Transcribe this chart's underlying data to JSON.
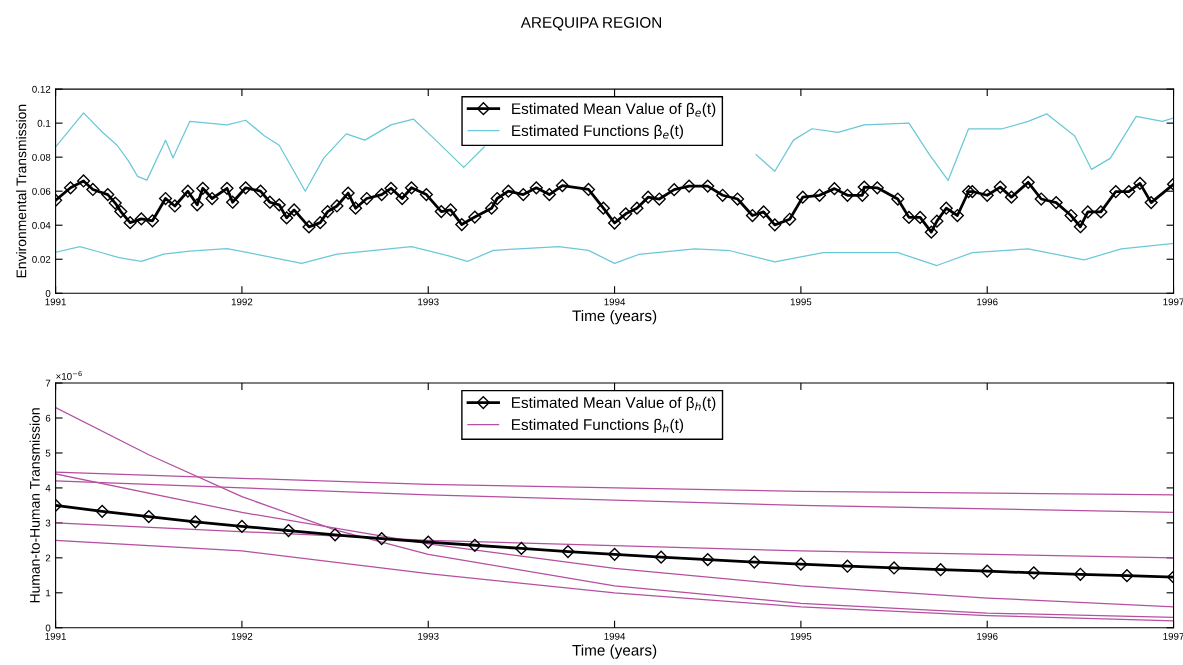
{
  "chart_data": [
    {
      "type": "line",
      "title": "AREQUIPA REGION",
      "xlabel": "Time (years)",
      "ylabel": "Environmental Transmission",
      "xlim": [
        1991,
        1997
      ],
      "xticks": [
        1991,
        1992,
        1993,
        1994,
        1995,
        1996,
        1997
      ],
      "ylim": [
        0,
        0.12
      ],
      "yticks": [
        0,
        0.02,
        0.04,
        0.06,
        0.08,
        0.1,
        0.12
      ],
      "legend": "top",
      "grid": false,
      "series": [
        {
          "name": "Estimated Functions β$_{e}$(t)",
          "color": "#6ac8d9",
          "marker": "none",
          "x": [
            1991.0,
            1991.05,
            1991.15,
            1991.25,
            1991.33,
            1991.39,
            1991.44,
            1991.49,
            1991.59,
            1991.63,
            1991.72,
            1991.92,
            1992.02,
            1992.12,
            1992.2,
            1992.34,
            1992.44,
            1992.56,
            1992.66,
            1992.8,
            1992.92,
            1993.04,
            1993.19,
            1993.3,
            1994.0,
            1994.76,
            1994.86,
            1994.96,
            1995.06,
            1995.2,
            1995.34,
            1995.58,
            1995.69,
            1995.79,
            1995.9,
            1996.08,
            1996.22,
            1996.32,
            1996.47,
            1996.56,
            1996.66,
            1996.8,
            1996.94,
            1997.0
          ],
          "values": [
            0.086,
            0.0926,
            0.106,
            0.0948,
            0.087,
            0.078,
            0.0687,
            0.0665,
            0.09,
            0.0796,
            0.101,
            0.099,
            0.1017,
            0.0926,
            0.087,
            0.06,
            0.0796,
            0.0937,
            0.09,
            0.099,
            0.1024,
            0.09,
            0.074,
            0.086,
            null,
            0.0815,
            0.0717,
            0.09,
            0.0967,
            0.0946,
            0.099,
            0.1,
            0.0815,
            0.0663,
            0.0967,
            0.0967,
            0.101,
            0.1054,
            0.0924,
            0.0728,
            0.0793,
            0.104,
            0.101,
            0.103
          ]
        },
        {
          "color": "#6ac8d9",
          "marker": "none",
          "x": [
            1991.0,
            1991.13,
            1991.24,
            1991.34,
            1991.46,
            1991.58,
            1991.72,
            1991.92,
            1992.12,
            1992.32,
            1992.51,
            1992.71,
            1992.91,
            1993.11,
            1993.21,
            1993.35,
            1993.51,
            1993.7,
            1993.86,
            1994.0,
            1994.13,
            1994.43,
            1994.62,
            1994.86,
            1995.12,
            1995.52,
            1995.73,
            1995.92,
            1996.22,
            1996.52,
            1996.72,
            1997.0
          ],
          "values": [
            0.0241,
            0.0274,
            0.0241,
            0.0209,
            0.0187,
            0.023,
            0.0248,
            0.0263,
            0.022,
            0.0176,
            0.023,
            0.0252,
            0.0274,
            0.022,
            0.0187,
            0.0252,
            0.0263,
            0.0274,
            0.0252,
            0.0176,
            0.0228,
            0.0261,
            0.025,
            0.0185,
            0.0239,
            0.0239,
            0.0163,
            0.0239,
            0.0261,
            0.0196,
            0.0261,
            0.0293
          ]
        },
        {
          "color": "#000000",
          "marker": "diamond",
          "x": [
            1991.0,
            1991.08,
            1991.15,
            1991.2,
            1991.28,
            1991.32,
            1991.35,
            1991.4,
            1991.46,
            1991.52,
            1991.59,
            1991.64,
            1991.71,
            1991.76,
            1991.79,
            1991.84,
            1991.92,
            1991.95,
            1992.02,
            1992.1,
            1992.15,
            1992.2,
            1992.24,
            1992.28,
            1992.36,
            1992.42,
            1992.46,
            1992.51,
            1992.57,
            1992.61,
            1992.67,
            1992.75,
            1992.8,
            1992.86,
            1992.91,
            1992.99,
            1993.07,
            1993.12,
            1993.18,
            1993.25,
            1993.34,
            1993.37,
            1993.43,
            1993.51,
            1993.58,
            1993.65,
            1993.72,
            1993.86,
            1993.94,
            1994.0,
            1994.06,
            1994.12,
            1994.18,
            1994.24,
            1994.32,
            1994.4,
            1994.5,
            1994.58,
            1994.66,
            1994.74,
            1994.8,
            1994.86,
            1994.94,
            1995.01,
            1995.1,
            1995.18,
            1995.25,
            1995.33,
            1995.34,
            1995.41,
            1995.52,
            1995.58,
            1995.64,
            1995.7,
            1995.73,
            1995.78,
            1995.84,
            1995.9,
            1995.92,
            1996.0,
            1996.07,
            1996.13,
            1996.22,
            1996.29,
            1996.37,
            1996.45,
            1996.5,
            1996.54,
            1996.61,
            1996.69,
            1996.76,
            1996.82,
            1996.88,
            1997.0
          ],
          "values": [
            0.0546,
            0.062,
            0.066,
            0.061,
            0.058,
            0.053,
            0.048,
            0.0415,
            0.0437,
            0.0426,
            0.0557,
            0.0513,
            0.06,
            0.052,
            0.0617,
            0.0557,
            0.0617,
            0.0535,
            0.062,
            0.06,
            0.0535,
            0.052,
            0.0443,
            0.049,
            0.039,
            0.0415,
            0.048,
            0.0513,
            0.0589,
            0.05,
            0.0557,
            0.058,
            0.0617,
            0.0557,
            0.062,
            0.058,
            0.048,
            0.049,
            0.0404,
            0.0448,
            0.05,
            0.0557,
            0.06,
            0.058,
            0.062,
            0.058,
            0.0633,
            0.061,
            0.05,
            0.0413,
            0.0467,
            0.05,
            0.0565,
            0.0554,
            0.0609,
            0.063,
            0.063,
            0.0576,
            0.0554,
            0.0457,
            0.0478,
            0.0402,
            0.0435,
            0.0565,
            0.0576,
            0.0615,
            0.0576,
            0.0576,
            0.0624,
            0.062,
            0.0554,
            0.0446,
            0.0446,
            0.0359,
            0.0424,
            0.05,
            0.0457,
            0.0598,
            0.0598,
            0.0576,
            0.0624,
            0.0565,
            0.0652,
            0.0554,
            0.0533,
            0.0457,
            0.0391,
            0.0478,
            0.0478,
            0.0598,
            0.0598,
            0.0646,
            0.0533,
            0.0641
          ],
          "name": "Estimated Mean Value of β$_{e}$(t)"
        }
      ]
    },
    {
      "type": "line",
      "xlabel": "Time (years)",
      "ylabel": "Human-to-Human Transmission",
      "annotations": [
        "×10$^{−6}$"
      ],
      "xlim": [
        1991,
        1997
      ],
      "xticks": [
        1991,
        1992,
        1993,
        1994,
        1995,
        1996,
        1997
      ],
      "ylim": [
        0,
        7
      ],
      "yticks": [
        0,
        1,
        2,
        3,
        4,
        5,
        6,
        7
      ],
      "legend": "top",
      "grid": false,
      "series": [
        {
          "name": "Estimated Functions β$_{h}$(t)",
          "color": "#b54fa0",
          "marker": "none",
          "x": [
            1991,
            1991.5,
            1992,
            1992.5,
            1993,
            1994,
            1995,
            1996,
            1997
          ],
          "values": [
            6.3,
            4.95,
            3.75,
            2.8,
            2.1,
            1.2,
            0.7,
            0.42,
            0.3
          ]
        },
        {
          "color": "#b54fa0",
          "marker": "none",
          "x": [
            1991,
            1993,
            1995,
            1997
          ],
          "values": [
            4.45,
            4.1,
            3.9,
            3.8
          ]
        },
        {
          "color": "#b54fa0",
          "marker": "none",
          "x": [
            1991,
            1993,
            1995,
            1997
          ],
          "values": [
            4.2,
            3.8,
            3.5,
            3.3
          ]
        },
        {
          "color": "#b54fa0",
          "marker": "none",
          "x": [
            1991,
            1992,
            1993,
            1994,
            1995,
            1996,
            1997
          ],
          "values": [
            2.5,
            2.2,
            1.55,
            1.0,
            0.6,
            0.35,
            0.2
          ]
        },
        {
          "color": "#b54fa0",
          "marker": "none",
          "x": [
            1991,
            1992,
            1993,
            1994,
            1995,
            1996,
            1997
          ],
          "values": [
            4.4,
            3.3,
            2.4,
            1.7,
            1.2,
            0.85,
            0.6
          ]
        },
        {
          "color": "#b54fa0",
          "marker": "none",
          "x": [
            1991,
            1993,
            1995,
            1997
          ],
          "values": [
            3.0,
            2.5,
            2.2,
            2.0
          ]
        },
        {
          "name": "Estimated Mean Value of β$_{h}$(t)",
          "color": "#000000",
          "marker": "diamond",
          "x": [
            1991,
            1991.25,
            1991.5,
            1991.75,
            1992,
            1992.25,
            1992.5,
            1992.75,
            1993,
            1993.25,
            1993.5,
            1993.75,
            1994,
            1994.25,
            1994.5,
            1994.75,
            1995,
            1995.25,
            1995.5,
            1995.75,
            1996,
            1996.25,
            1996.5,
            1996.75,
            1997
          ],
          "values": [
            3.5,
            3.33,
            3.18,
            3.03,
            2.9,
            2.78,
            2.66,
            2.55,
            2.45,
            2.36,
            2.27,
            2.18,
            2.1,
            2.02,
            1.95,
            1.88,
            1.82,
            1.76,
            1.71,
            1.66,
            1.62,
            1.57,
            1.53,
            1.49,
            1.45
          ]
        }
      ]
    }
  ]
}
